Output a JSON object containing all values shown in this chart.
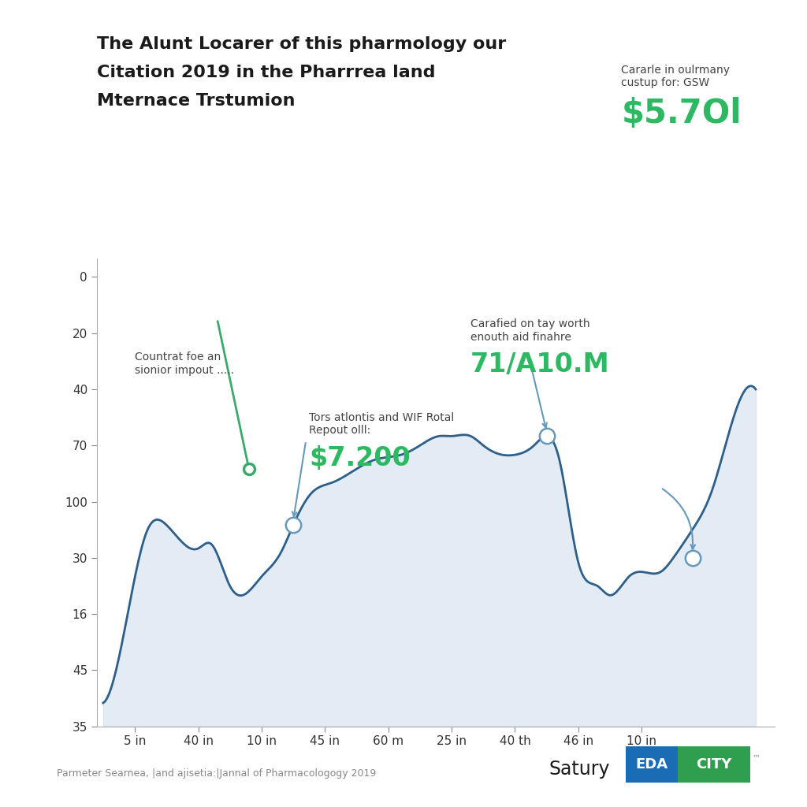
{
  "title_line1": "The Alunt Locarer of this pharmology our",
  "title_line2": "Citation 2019 in the Pharrrea land",
  "title_line3": "Mternace Trstumion",
  "source_text": "Parmeter Searnea, |and ajisetia:|Jannal of Pharmacologogy 2019",
  "brand_text1": "Satury",
  "brand_text2_eda": "EDA",
  "brand_text2_city": "CITY",
  "annotation1_label": "Tors atlontis and WIF Rotal\nRepout olll:",
  "annotation1_value": "$7.200",
  "annotation2_label": "Countrat foe an\nsionior impout .....",
  "annotation3_label": "Carafied on tay worth\nenouth aid finahre",
  "annotation3_value": "71/Α10.M",
  "annotation4_label": "Cararle in oulrmany\ncustup for: GSW",
  "annotation4_value": "$5.7Οl",
  "x_labels": [
    "5 in",
    "40 in",
    "10 in",
    "45 in",
    "60 m",
    "25 in",
    "40 th",
    "46 in",
    "10 in"
  ],
  "y_labels_display": [
    "35",
    "45",
    "16",
    "30",
    "100",
    "70",
    "40",
    "20",
    "0"
  ],
  "background_color": "#ffffff",
  "line_color": "#2d5f8a",
  "fill_color": "#c8d8ec",
  "fill_alpha": 0.5,
  "green_line_color": "#3aaa6a",
  "green_dot_color": "#3aaa6a",
  "annotation_value_color": "#2db862",
  "arrow_color": "#6699bb",
  "circle_color": "#6699bb"
}
